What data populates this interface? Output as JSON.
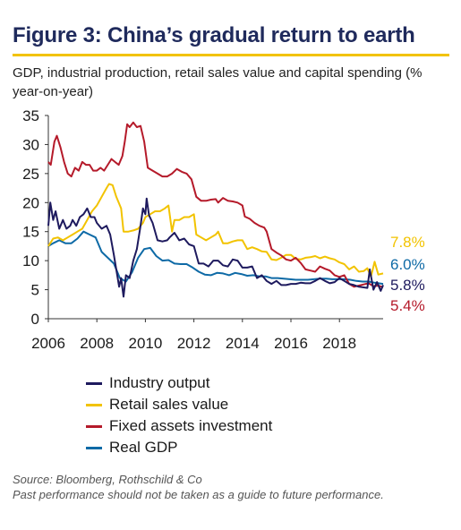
{
  "figure_title": "Figure 3: China’s gradual return to earth",
  "subtitle": "GDP, industrial production, retail sales value and capital spending (% year-on-year)",
  "chart_data": {
    "type": "line",
    "ylim": [
      0,
      35
    ],
    "yticks": [
      "0",
      "5",
      "10",
      "15",
      "20",
      "25",
      "30",
      "35"
    ],
    "xlim": [
      2006,
      2019.8
    ],
    "xticks": [
      "2006",
      "2008",
      "2010",
      "2012",
      "2014",
      "2016",
      "2018"
    ],
    "series": [
      {
        "name": "Industry output",
        "color": "#1e1a5e",
        "end_label": "5.8%",
        "points": [
          [
            2006.0,
            16
          ],
          [
            2006.08,
            20
          ],
          [
            2006.2,
            17
          ],
          [
            2006.3,
            18.5
          ],
          [
            2006.45,
            15.5
          ],
          [
            2006.6,
            17
          ],
          [
            2006.75,
            15.5
          ],
          [
            2006.9,
            16
          ],
          [
            2007.0,
            17
          ],
          [
            2007.15,
            16
          ],
          [
            2007.3,
            17.5
          ],
          [
            2007.45,
            18
          ],
          [
            2007.6,
            19
          ],
          [
            2007.75,
            17.5
          ],
          [
            2007.9,
            17.5
          ],
          [
            2008.0,
            16.5
          ],
          [
            2008.2,
            15.5
          ],
          [
            2008.4,
            16
          ],
          [
            2008.55,
            14.5
          ],
          [
            2008.7,
            11
          ],
          [
            2008.82,
            8
          ],
          [
            2008.92,
            5.5
          ],
          [
            2009.0,
            7
          ],
          [
            2009.1,
            3.8
          ],
          [
            2009.2,
            7.5
          ],
          [
            2009.35,
            7
          ],
          [
            2009.5,
            10
          ],
          [
            2009.65,
            12
          ],
          [
            2009.8,
            16
          ],
          [
            2009.9,
            19
          ],
          [
            2010.0,
            18
          ],
          [
            2010.05,
            20.7
          ],
          [
            2010.15,
            17.8
          ],
          [
            2010.3,
            16.5
          ],
          [
            2010.5,
            13.5
          ],
          [
            2010.7,
            13.3
          ],
          [
            2010.9,
            13.5
          ],
          [
            2011.0,
            14
          ],
          [
            2011.2,
            14.8
          ],
          [
            2011.4,
            13.5
          ],
          [
            2011.6,
            13.8
          ],
          [
            2011.8,
            12.8
          ],
          [
            2012.0,
            12.5
          ],
          [
            2012.2,
            9.5
          ],
          [
            2012.4,
            9.5
          ],
          [
            2012.6,
            9
          ],
          [
            2012.8,
            10
          ],
          [
            2013.0,
            10
          ],
          [
            2013.2,
            9.2
          ],
          [
            2013.4,
            9
          ],
          [
            2013.6,
            10.2
          ],
          [
            2013.8,
            10
          ],
          [
            2014.0,
            8.8
          ],
          [
            2014.2,
            8.8
          ],
          [
            2014.4,
            9
          ],
          [
            2014.6,
            7
          ],
          [
            2014.8,
            7.5
          ],
          [
            2015.0,
            6.5
          ],
          [
            2015.2,
            6
          ],
          [
            2015.4,
            6.5
          ],
          [
            2015.6,
            5.8
          ],
          [
            2015.8,
            5.8
          ],
          [
            2016.0,
            6
          ],
          [
            2016.2,
            6
          ],
          [
            2016.4,
            6.2
          ],
          [
            2016.6,
            6.1
          ],
          [
            2016.8,
            6.1
          ],
          [
            2017.0,
            6.5
          ],
          [
            2017.2,
            7
          ],
          [
            2017.4,
            6.5
          ],
          [
            2017.6,
            6.1
          ],
          [
            2017.8,
            6.3
          ],
          [
            2018.0,
            7
          ],
          [
            2018.2,
            6.5
          ],
          [
            2018.4,
            6
          ],
          [
            2018.6,
            5.8
          ],
          [
            2018.8,
            5.5
          ],
          [
            2019.0,
            5.4
          ],
          [
            2019.15,
            5.3
          ],
          [
            2019.25,
            8.5
          ],
          [
            2019.4,
            5
          ],
          [
            2019.55,
            6.3
          ],
          [
            2019.7,
            4.8
          ],
          [
            2019.8,
            5.8
          ]
        ]
      },
      {
        "name": "Retail sales value",
        "color": "#f2c300",
        "end_label": "7.8%",
        "points": [
          [
            2006.0,
            12.5
          ],
          [
            2006.2,
            13.8
          ],
          [
            2006.4,
            14
          ],
          [
            2006.6,
            13.5
          ],
          [
            2006.8,
            14
          ],
          [
            2007.0,
            14.5
          ],
          [
            2007.2,
            15
          ],
          [
            2007.4,
            15.5
          ],
          [
            2007.6,
            17
          ],
          [
            2007.8,
            18.5
          ],
          [
            2008.0,
            19.5
          ],
          [
            2008.2,
            21
          ],
          [
            2008.4,
            22.5
          ],
          [
            2008.5,
            23.2
          ],
          [
            2008.65,
            23
          ],
          [
            2008.8,
            21
          ],
          [
            2009.0,
            19
          ],
          [
            2009.1,
            15
          ],
          [
            2009.3,
            15
          ],
          [
            2009.5,
            15.2
          ],
          [
            2009.7,
            15.5
          ],
          [
            2009.9,
            16.5
          ],
          [
            2010.0,
            17.5
          ],
          [
            2010.2,
            18
          ],
          [
            2010.4,
            18.5
          ],
          [
            2010.6,
            18.5
          ],
          [
            2010.8,
            19
          ],
          [
            2010.95,
            19.5
          ],
          [
            2011.1,
            15
          ],
          [
            2011.2,
            17
          ],
          [
            2011.4,
            17
          ],
          [
            2011.6,
            17.5
          ],
          [
            2011.8,
            17.5
          ],
          [
            2012.0,
            18
          ],
          [
            2012.1,
            14.5
          ],
          [
            2012.3,
            14
          ],
          [
            2012.5,
            13.5
          ],
          [
            2012.7,
            14
          ],
          [
            2012.9,
            14.5
          ],
          [
            2013.0,
            15
          ],
          [
            2013.2,
            13
          ],
          [
            2013.4,
            13
          ],
          [
            2013.6,
            13.3
          ],
          [
            2013.8,
            13.5
          ],
          [
            2014.0,
            13.5
          ],
          [
            2014.2,
            12
          ],
          [
            2014.4,
            12.3
          ],
          [
            2014.6,
            12
          ],
          [
            2014.8,
            11.6
          ],
          [
            2015.0,
            11.5
          ],
          [
            2015.2,
            10.2
          ],
          [
            2015.4,
            10.1
          ],
          [
            2015.6,
            10.5
          ],
          [
            2015.8,
            11
          ],
          [
            2016.0,
            11
          ],
          [
            2016.2,
            10.3
          ],
          [
            2016.4,
            10.2
          ],
          [
            2016.6,
            10.5
          ],
          [
            2016.8,
            10.6
          ],
          [
            2017.0,
            10.8
          ],
          [
            2017.2,
            10.4
          ],
          [
            2017.4,
            10.7
          ],
          [
            2017.6,
            10.4
          ],
          [
            2017.8,
            10.2
          ],
          [
            2018.0,
            9.7
          ],
          [
            2018.2,
            9.4
          ],
          [
            2018.4,
            8.5
          ],
          [
            2018.6,
            9
          ],
          [
            2018.8,
            8.1
          ],
          [
            2019.0,
            8.2
          ],
          [
            2019.15,
            8.7
          ],
          [
            2019.3,
            7.2
          ],
          [
            2019.45,
            9.8
          ],
          [
            2019.6,
            7.6
          ],
          [
            2019.8,
            7.8
          ]
        ]
      },
      {
        "name": "Fixed assets investment",
        "color": "#b51a2a",
        "end_label": "5.4%",
        "points": [
          [
            2006.0,
            27
          ],
          [
            2006.1,
            26.5
          ],
          [
            2006.25,
            30.5
          ],
          [
            2006.35,
            31.5
          ],
          [
            2006.5,
            29.5
          ],
          [
            2006.65,
            27
          ],
          [
            2006.8,
            25
          ],
          [
            2006.95,
            24.5
          ],
          [
            2007.1,
            26
          ],
          [
            2007.25,
            25.5
          ],
          [
            2007.4,
            27
          ],
          [
            2007.55,
            26.5
          ],
          [
            2007.7,
            26.5
          ],
          [
            2007.85,
            25.5
          ],
          [
            2008.0,
            25.5
          ],
          [
            2008.15,
            26
          ],
          [
            2008.3,
            25.5
          ],
          [
            2008.45,
            26.5
          ],
          [
            2008.6,
            27.5
          ],
          [
            2008.75,
            27
          ],
          [
            2008.9,
            26.5
          ],
          [
            2009.05,
            28
          ],
          [
            2009.15,
            30.5
          ],
          [
            2009.25,
            33.5
          ],
          [
            2009.35,
            33
          ],
          [
            2009.5,
            33.8
          ],
          [
            2009.65,
            33
          ],
          [
            2009.8,
            33.2
          ],
          [
            2009.95,
            30.5
          ],
          [
            2010.1,
            26
          ],
          [
            2010.3,
            25.5
          ],
          [
            2010.5,
            25
          ],
          [
            2010.7,
            24.5
          ],
          [
            2010.9,
            24.5
          ],
          [
            2011.1,
            25
          ],
          [
            2011.3,
            25.8
          ],
          [
            2011.5,
            25.3
          ],
          [
            2011.7,
            25
          ],
          [
            2011.9,
            24
          ],
          [
            2012.1,
            21
          ],
          [
            2012.3,
            20.3
          ],
          [
            2012.5,
            20.3
          ],
          [
            2012.7,
            20.5
          ],
          [
            2012.9,
            20.6
          ],
          [
            2013.0,
            20
          ],
          [
            2013.2,
            20.8
          ],
          [
            2013.4,
            20.3
          ],
          [
            2013.6,
            20.2
          ],
          [
            2013.8,
            20
          ],
          [
            2014.0,
            19.5
          ],
          [
            2014.1,
            17.6
          ],
          [
            2014.3,
            17.2
          ],
          [
            2014.5,
            16.5
          ],
          [
            2014.7,
            16
          ],
          [
            2014.9,
            15.7
          ],
          [
            2015.0,
            15
          ],
          [
            2015.2,
            12
          ],
          [
            2015.4,
            11.4
          ],
          [
            2015.6,
            10.9
          ],
          [
            2015.8,
            10.2
          ],
          [
            2016.0,
            10
          ],
          [
            2016.2,
            10.5
          ],
          [
            2016.4,
            9.6
          ],
          [
            2016.6,
            8.5
          ],
          [
            2016.8,
            8.3
          ],
          [
            2017.0,
            8.1
          ],
          [
            2017.2,
            9
          ],
          [
            2017.4,
            8.6
          ],
          [
            2017.6,
            8.3
          ],
          [
            2017.8,
            7.5
          ],
          [
            2018.0,
            7.2
          ],
          [
            2018.2,
            7.5
          ],
          [
            2018.4,
            6
          ],
          [
            2018.6,
            5.5
          ],
          [
            2018.8,
            5.7
          ],
          [
            2019.0,
            5.9
          ],
          [
            2019.2,
            6.1
          ],
          [
            2019.4,
            5.6
          ],
          [
            2019.6,
            5.7
          ],
          [
            2019.8,
            5.4
          ]
        ]
      },
      {
        "name": "Real GDP",
        "color": "#0e6aa6",
        "end_label": "6.0%",
        "points": [
          [
            2006.0,
            12.5
          ],
          [
            2006.2,
            13
          ],
          [
            2006.45,
            13.5
          ],
          [
            2006.7,
            13
          ],
          [
            2006.95,
            13
          ],
          [
            2007.2,
            13.8
          ],
          [
            2007.45,
            15
          ],
          [
            2007.7,
            14.5
          ],
          [
            2007.95,
            14
          ],
          [
            2008.2,
            11.5
          ],
          [
            2008.45,
            10.5
          ],
          [
            2008.7,
            9.5
          ],
          [
            2008.95,
            7
          ],
          [
            2009.2,
            6.4
          ],
          [
            2009.45,
            8
          ],
          [
            2009.7,
            10.5
          ],
          [
            2009.95,
            12
          ],
          [
            2010.2,
            12.2
          ],
          [
            2010.45,
            10.8
          ],
          [
            2010.7,
            10
          ],
          [
            2010.95,
            10.1
          ],
          [
            2011.2,
            9.5
          ],
          [
            2011.45,
            9.4
          ],
          [
            2011.7,
            9.4
          ],
          [
            2011.95,
            8.8
          ],
          [
            2012.2,
            8.1
          ],
          [
            2012.45,
            7.6
          ],
          [
            2012.7,
            7.5
          ],
          [
            2012.95,
            7.9
          ],
          [
            2013.2,
            7.8
          ],
          [
            2013.45,
            7.5
          ],
          [
            2013.7,
            7.9
          ],
          [
            2013.95,
            7.7
          ],
          [
            2014.2,
            7.4
          ],
          [
            2014.45,
            7.5
          ],
          [
            2014.7,
            7.3
          ],
          [
            2014.95,
            7.3
          ],
          [
            2015.2,
            7
          ],
          [
            2015.45,
            7
          ],
          [
            2015.7,
            6.9
          ],
          [
            2015.95,
            6.8
          ],
          [
            2016.2,
            6.7
          ],
          [
            2016.45,
            6.7
          ],
          [
            2016.7,
            6.7
          ],
          [
            2016.95,
            6.8
          ],
          [
            2017.2,
            6.9
          ],
          [
            2017.45,
            6.9
          ],
          [
            2017.7,
            6.8
          ],
          [
            2017.95,
            6.8
          ],
          [
            2018.2,
            6.8
          ],
          [
            2018.45,
            6.7
          ],
          [
            2018.7,
            6.5
          ],
          [
            2018.95,
            6.4
          ],
          [
            2019.2,
            6.4
          ],
          [
            2019.45,
            6.2
          ],
          [
            2019.8,
            6
          ]
        ]
      }
    ]
  },
  "source_line1": "Source: Bloomberg, Rothschild & Co",
  "source_line2": "Past performance should not be taken as a guide to future performance."
}
